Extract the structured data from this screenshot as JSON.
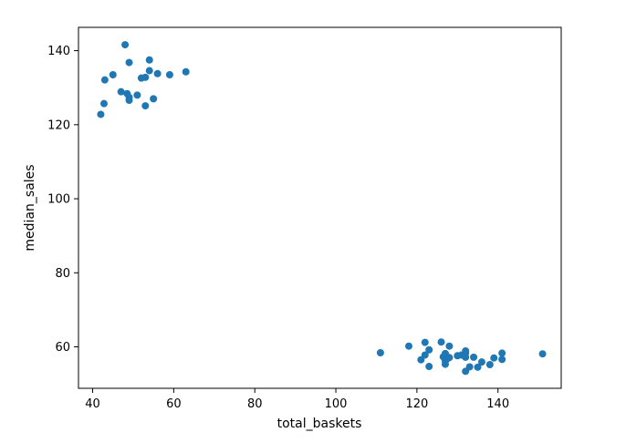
{
  "chart_data": {
    "type": "scatter",
    "xlabel": "total_baskets",
    "ylabel": "median_sales",
    "xlim": [
      36.5,
      155.6
    ],
    "ylim": [
      48.8,
      146.3
    ],
    "xticks": [
      40,
      60,
      80,
      100,
      120,
      140
    ],
    "yticks": [
      60,
      80,
      100,
      120,
      140
    ],
    "grid": false,
    "marker_color": "#1f77b4",
    "series": [
      {
        "points": [
          [
            42,
            122.8
          ],
          [
            42.8,
            125.7
          ],
          [
            43,
            132.1
          ],
          [
            45,
            133.5
          ],
          [
            47,
            128.9
          ],
          [
            48,
            141.6
          ],
          [
            48.5,
            128.4
          ],
          [
            49,
            136.8
          ],
          [
            49,
            127.4
          ],
          [
            49,
            126.6
          ],
          [
            51,
            128.0
          ],
          [
            52,
            132.6
          ],
          [
            53,
            132.8
          ],
          [
            53,
            125.1
          ],
          [
            54,
            137.5
          ],
          [
            54,
            134.6
          ],
          [
            55,
            127.0
          ],
          [
            56,
            133.8
          ],
          [
            59,
            133.5
          ],
          [
            63,
            134.3
          ],
          [
            111,
            58.4
          ],
          [
            118,
            60.2
          ],
          [
            121,
            56.5
          ],
          [
            122,
            61.2
          ],
          [
            122,
            57.8
          ],
          [
            123,
            59.2
          ],
          [
            123,
            54.7
          ],
          [
            126,
            61.3
          ],
          [
            126.5,
            57.3
          ],
          [
            127,
            58.2
          ],
          [
            127,
            56.2
          ],
          [
            127,
            55.3
          ],
          [
            127.5,
            56.8
          ],
          [
            128,
            60.2
          ],
          [
            128,
            57.1
          ],
          [
            130,
            57.6
          ],
          [
            131,
            57.8
          ],
          [
            132,
            58.9
          ],
          [
            132,
            58.3
          ],
          [
            132,
            57.2
          ],
          [
            132,
            53.4
          ],
          [
            133,
            54.6
          ],
          [
            134,
            57.2
          ],
          [
            135,
            54.5
          ],
          [
            136,
            55.9
          ],
          [
            138,
            55.2
          ],
          [
            139,
            57.0
          ],
          [
            141,
            58.3
          ],
          [
            141,
            56.6
          ],
          [
            151,
            58.1
          ]
        ]
      }
    ]
  }
}
